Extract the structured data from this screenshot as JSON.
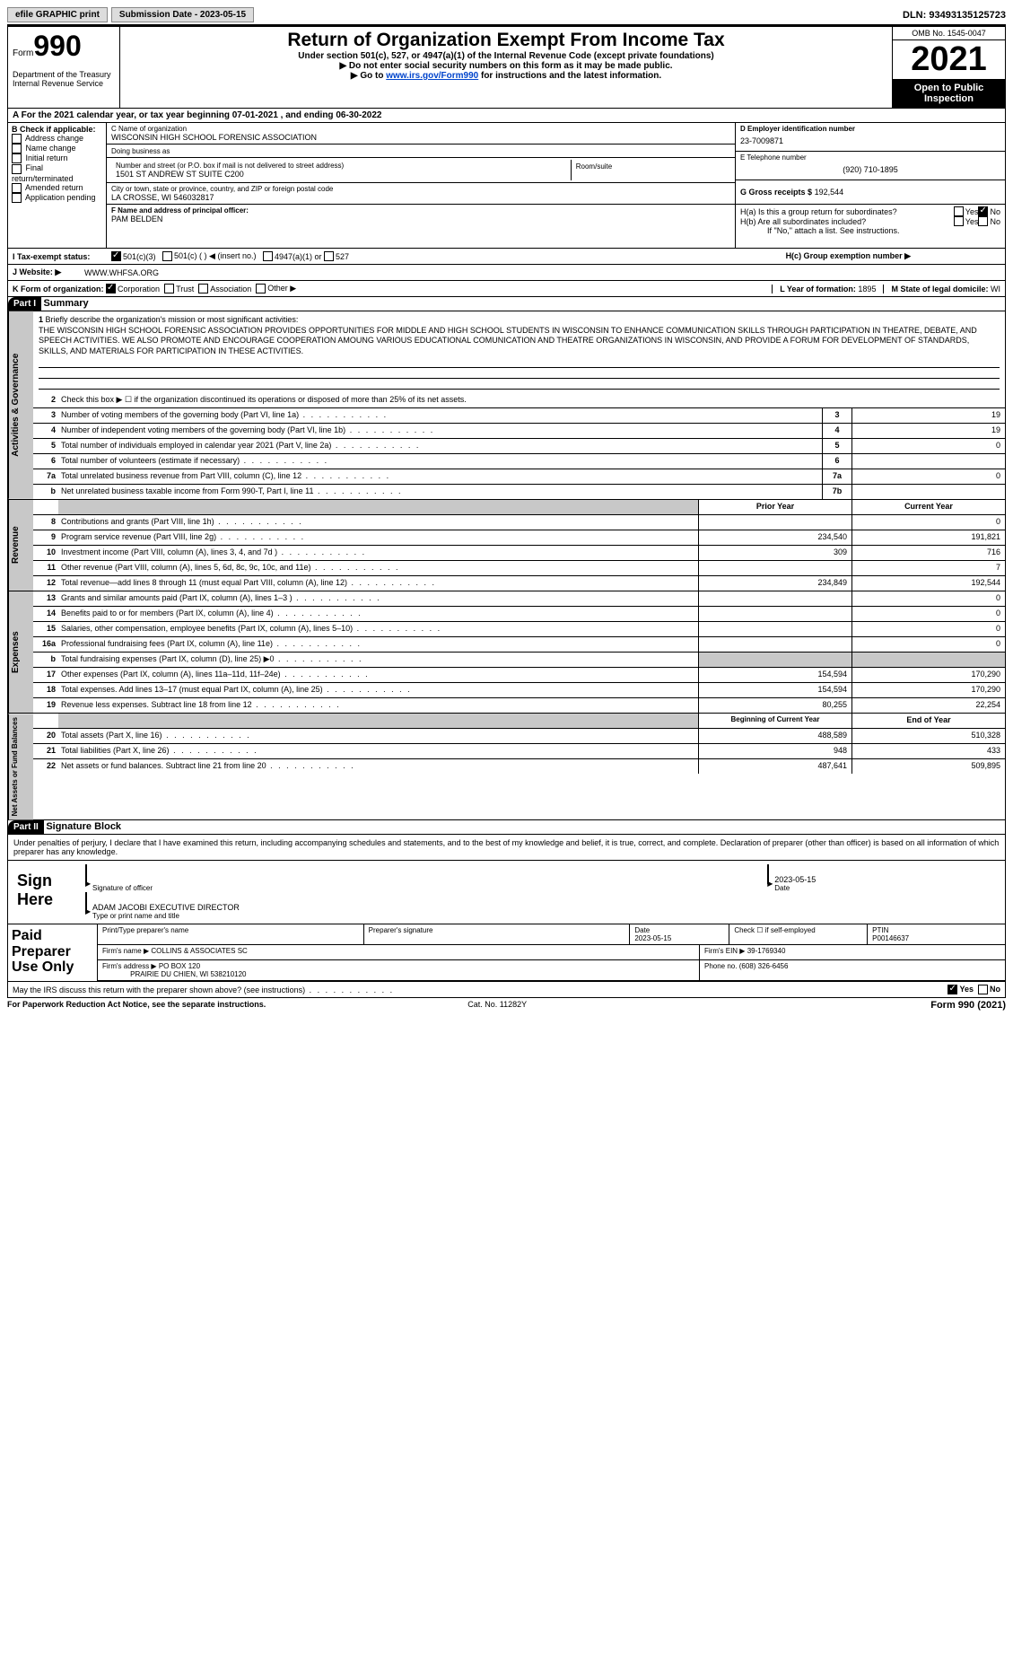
{
  "topbar": {
    "efile": "efile GRAPHIC print",
    "submission": "Submission Date - 2023-05-15",
    "dln": "DLN: 93493135125723"
  },
  "header": {
    "formword": "Form",
    "formnum": "990",
    "dept": "Department of the Treasury\nInternal Revenue Service",
    "title": "Return of Organization Exempt From Income Tax",
    "sub1": "Under section 501(c), 527, or 4947(a)(1) of the Internal Revenue Code (except private foundations)",
    "sub2": "▶ Do not enter social security numbers on this form as it may be made public.",
    "sub3_pre": "▶ Go to ",
    "sub3_link": "www.irs.gov/Form990",
    "sub3_post": " for instructions and the latest information.",
    "omb": "OMB No. 1545-0047",
    "year": "2021",
    "openpub": "Open to Public Inspection"
  },
  "sectionA": "A For the 2021 calendar year, or tax year beginning 07-01-2021   , and ending 06-30-2022",
  "sectionB": {
    "label": "B Check if applicable:",
    "items": [
      "Address change",
      "Name change",
      "Initial return",
      "Final return/terminated",
      "Amended return",
      "Application pending"
    ]
  },
  "sectionC": {
    "namelabel": "C Name of organization",
    "name": "WISCONSIN HIGH SCHOOL FORENSIC ASSOCIATION",
    "dba": "Doing business as",
    "addrlabel": "Number and street (or P.O. box if mail is not delivered to street address)",
    "addr": "1501 ST ANDREW ST SUITE C200",
    "roomlabel": "Room/suite",
    "citylabel": "City or town, state or province, country, and ZIP or foreign postal code",
    "city": "LA CROSSE, WI  546032817",
    "officerlabel": "F  Name and address of principal officer:",
    "officer": "PAM BELDEN"
  },
  "sectionD": {
    "label": "D Employer identification number",
    "val": "23-7009871"
  },
  "sectionE": {
    "label": "E Telephone number",
    "val": "(920) 710-1895"
  },
  "sectionG": {
    "label": "G Gross receipts $",
    "val": "192,544"
  },
  "sectionH": {
    "ha": "H(a)  Is this a group return for subordinates?",
    "hb": "H(b)  Are all subordinates included?",
    "hbnote": "If \"No,\" attach a list. See instructions.",
    "hc": "H(c)  Group exemption number ▶",
    "yes": "Yes",
    "no": "No"
  },
  "sectionI": {
    "label": "I  Tax-exempt status:",
    "c3": "501(c)(3)",
    "c": "501(c) (  ) ◀ (insert no.)",
    "a": "4947(a)(1) or",
    "527": "527"
  },
  "sectionJ": {
    "label": "J  Website: ▶",
    "val": "WWW.WHFSA.ORG"
  },
  "sectionK": {
    "label": "K Form of organization:",
    "corp": "Corporation",
    "trust": "Trust",
    "assoc": "Association",
    "other": "Other ▶"
  },
  "sectionL": {
    "label": "L Year of formation:",
    "val": "1895"
  },
  "sectionM": {
    "label": "M State of legal domicile:",
    "val": "WI"
  },
  "part1": {
    "tag": "Part I",
    "title": "Summary",
    "l1": "Briefly describe the organization's mission or most significant activities:",
    "mission": "THE WISCONSIN HIGH SCHOOL FORENSIC ASSOCIATION PROVIDES OPPORTUNITIES FOR MIDDLE AND HIGH SCHOOL STUDENTS IN WISCONSIN TO ENHANCE COMMUNICATION SKILLS THROUGH PARTICIPATION IN THEATRE, DEBATE, AND SPEECH ACTIVITIES. WE ALSO PROMOTE AND ENCOURAGE COOPERATION AMOUNG VARIOUS EDUCATIONAL COMUNICATION AND THEATRE ORGANIZATIONS IN WISCONSIN, AND PROVIDE A FORUM FOR DEVELOPMENT OF STANDARDS, SKILLS, AND MATERIALS FOR PARTICIPATION IN THESE ACTIVITIES.",
    "l2": "Check this box ▶ ☐  if the organization discontinued its operations or disposed of more than 25% of its net assets.",
    "rows_ag": [
      {
        "n": "3",
        "d": "Number of voting members of the governing body (Part VI, line 1a)",
        "c": "3",
        "v": "19"
      },
      {
        "n": "4",
        "d": "Number of independent voting members of the governing body (Part VI, line 1b)",
        "c": "4",
        "v": "19"
      },
      {
        "n": "5",
        "d": "Total number of individuals employed in calendar year 2021 (Part V, line 2a)",
        "c": "5",
        "v": "0"
      },
      {
        "n": "6",
        "d": "Total number of volunteers (estimate if necessary)",
        "c": "6",
        "v": ""
      },
      {
        "n": "7a",
        "d": "Total unrelated business revenue from Part VIII, column (C), line 12",
        "c": "7a",
        "v": "0"
      },
      {
        "n": "b",
        "d": "Net unrelated business taxable income from Form 990-T, Part I, line 11",
        "c": "7b",
        "v": ""
      }
    ],
    "py": "Prior Year",
    "cy": "Current Year",
    "rows_rev": [
      {
        "n": "8",
        "d": "Contributions and grants (Part VIII, line 1h)",
        "p": "",
        "c": "0"
      },
      {
        "n": "9",
        "d": "Program service revenue (Part VIII, line 2g)",
        "p": "234,540",
        "c": "191,821"
      },
      {
        "n": "10",
        "d": "Investment income (Part VIII, column (A), lines 3, 4, and 7d )",
        "p": "309",
        "c": "716"
      },
      {
        "n": "11",
        "d": "Other revenue (Part VIII, column (A), lines 5, 6d, 8c, 9c, 10c, and 11e)",
        "p": "",
        "c": "7"
      },
      {
        "n": "12",
        "d": "Total revenue—add lines 8 through 11 (must equal Part VIII, column (A), line 12)",
        "p": "234,849",
        "c": "192,544"
      }
    ],
    "rows_exp": [
      {
        "n": "13",
        "d": "Grants and similar amounts paid (Part IX, column (A), lines 1–3 )",
        "p": "",
        "c": "0"
      },
      {
        "n": "14",
        "d": "Benefits paid to or for members (Part IX, column (A), line 4)",
        "p": "",
        "c": "0"
      },
      {
        "n": "15",
        "d": "Salaries, other compensation, employee benefits (Part IX, column (A), lines 5–10)",
        "p": "",
        "c": "0"
      },
      {
        "n": "16a",
        "d": "Professional fundraising fees (Part IX, column (A), line 11e)",
        "p": "",
        "c": "0"
      },
      {
        "n": "b",
        "d": "Total fundraising expenses (Part IX, column (D), line 25) ▶0",
        "p": "GRAY",
        "c": "GRAY"
      },
      {
        "n": "17",
        "d": "Other expenses (Part IX, column (A), lines 11a–11d, 11f–24e)",
        "p": "154,594",
        "c": "170,290"
      },
      {
        "n": "18",
        "d": "Total expenses. Add lines 13–17 (must equal Part IX, column (A), line 25)",
        "p": "154,594",
        "c": "170,290"
      },
      {
        "n": "19",
        "d": "Revenue less expenses. Subtract line 18 from line 12",
        "p": "80,255",
        "c": "22,254"
      }
    ],
    "boy": "Beginning of Current Year",
    "eoy": "End of Year",
    "rows_na": [
      {
        "n": "20",
        "d": "Total assets (Part X, line 16)",
        "p": "488,589",
        "c": "510,328"
      },
      {
        "n": "21",
        "d": "Total liabilities (Part X, line 26)",
        "p": "948",
        "c": "433"
      },
      {
        "n": "22",
        "d": "Net assets or fund balances. Subtract line 21 from line 20",
        "p": "487,641",
        "c": "509,895"
      }
    ],
    "vlab_ag": "Activities & Governance",
    "vlab_rev": "Revenue",
    "vlab_exp": "Expenses",
    "vlab_na": "Net Assets or Fund Balances"
  },
  "part2": {
    "tag": "Part II",
    "title": "Signature Block",
    "decl": "Under penalties of perjury, I declare that I have examined this return, including accompanying schedules and statements, and to the best of my knowledge and belief, it is true, correct, and complete. Declaration of preparer (other than officer) is based on all information of which preparer has any knowledge.",
    "sign": "Sign Here",
    "sigoff": "Signature of officer",
    "date": "Date",
    "dateval": "2023-05-15",
    "typename": "ADAM JACOBI EXECUTIVE DIRECTOR",
    "typelabel": "Type or print name and title",
    "paid": "Paid Preparer Use Only",
    "pname": "Print/Type preparer's name",
    "psig": "Preparer's signature",
    "pdate": "2023-05-15",
    "chkse": "Check ☐ if self-employed",
    "ptinl": "PTIN",
    "ptin": "P00146637",
    "firmname_l": "Firm's name   ▶",
    "firmname": "COLLINS & ASSOCIATES SC",
    "firmein_l": "Firm's EIN ▶",
    "firmein": "39-1769340",
    "firmaddr_l": "Firm's address ▶",
    "firmaddr": "PO BOX 120",
    "firmcity": "PRAIRIE DU CHIEN, WI  538210120",
    "phone_l": "Phone no.",
    "phone": "(608) 326-6456",
    "discuss": "May the IRS discuss this return with the preparer shown above? (see instructions)"
  },
  "footer": {
    "pra": "For Paperwork Reduction Act Notice, see the separate instructions.",
    "cat": "Cat. No. 11282Y",
    "form": "Form 990 (2021)"
  }
}
